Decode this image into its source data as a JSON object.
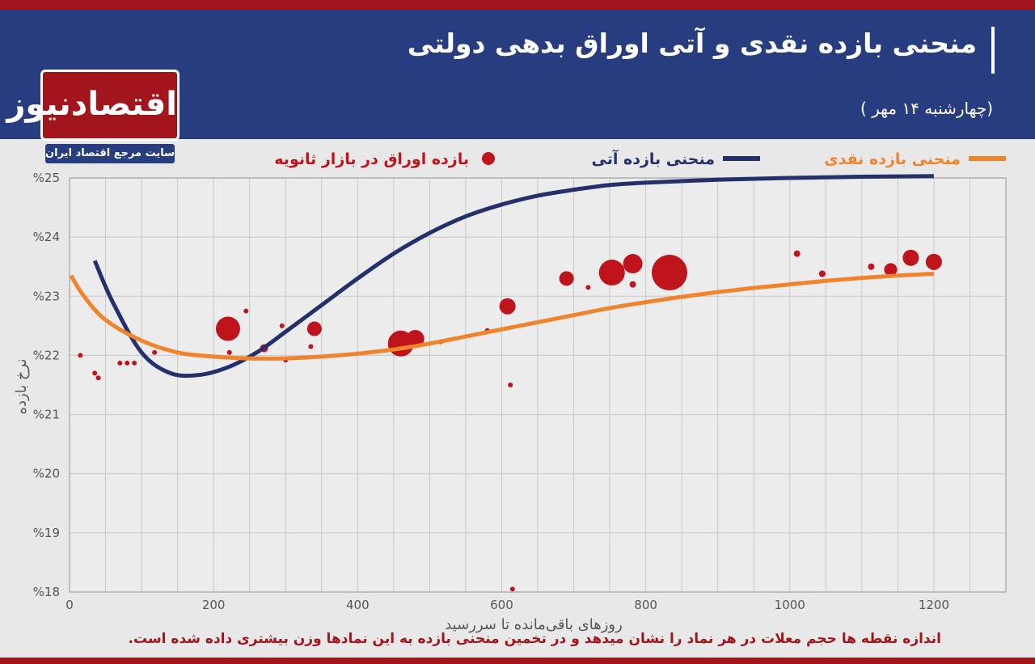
{
  "header": {
    "title": "منحنی بازده نقدی و آتی اوراق بدهی دولتی",
    "date": "(چهارشنبه ۱۴ مهر )"
  },
  "logo": {
    "name": "اقتصادنیوز",
    "tagline": "سایت مرجع اقتصاد ایران"
  },
  "footnote": "اندازه نقطه ها حجم معلات در هر نماد را نشان میدهد و در تخمین منحنی بازده به این نمادها وزن بیشتری داده شده است.",
  "colors": {
    "header_bg": "#283c80",
    "accent_red": "#a3151d",
    "spot_curve": "#f0842c",
    "forward_curve": "#24306b",
    "dots": "#c0141c"
  },
  "chart_data": {
    "type": "scatter",
    "xlabel": "روزهای باقی‌مانده تا سررسید",
    "ylabel": "نرخ بازده",
    "xlim": [
      0,
      1300
    ],
    "ylim": [
      18,
      25
    ],
    "x_ticks": [
      0,
      200,
      400,
      600,
      800,
      1000,
      1200
    ],
    "x_tick_labels": [
      "0",
      "200",
      "400",
      "600",
      "800",
      "1000",
      "1200"
    ],
    "y_ticks": [
      18,
      19,
      20,
      21,
      22,
      23,
      24,
      25
    ],
    "y_tick_labels": [
      "%18",
      "%19",
      "%20",
      "%21",
      "%22",
      "%23",
      "%24",
      "%25"
    ],
    "grid": true,
    "legend_position": "top",
    "legend": {
      "spot": "منحنی بازده نقدی",
      "forward": "منحنی بازده آتی",
      "dots": "بازده اوراق در بازار ثانویه"
    },
    "series": [
      {
        "name": "منحنی بازده نقدی",
        "kind": "line",
        "x": [
          2,
          20,
          50,
          100,
          150,
          200,
          250,
          300,
          350,
          400,
          450,
          500,
          550,
          600,
          650,
          700,
          750,
          800,
          850,
          900,
          950,
          1000,
          1050,
          1100,
          1150,
          1200
        ],
        "y": [
          23.35,
          23.0,
          22.6,
          22.25,
          22.05,
          21.98,
          21.95,
          21.95,
          21.98,
          22.03,
          22.1,
          22.2,
          22.32,
          22.44,
          22.56,
          22.68,
          22.8,
          22.9,
          22.99,
          23.07,
          23.14,
          23.2,
          23.26,
          23.31,
          23.35,
          23.38
        ]
      },
      {
        "name": "منحنی بازده آتی",
        "kind": "line",
        "x": [
          35,
          60,
          100,
          140,
          180,
          220,
          260,
          300,
          350,
          400,
          450,
          500,
          550,
          600,
          650,
          700,
          750,
          800,
          900,
          1000,
          1100,
          1200
        ],
        "y": [
          23.6,
          22.9,
          22.05,
          21.7,
          21.67,
          21.8,
          22.05,
          22.4,
          22.85,
          23.3,
          23.72,
          24.07,
          24.35,
          24.55,
          24.7,
          24.8,
          24.88,
          24.92,
          24.97,
          25.0,
          25.02,
          25.03
        ]
      },
      {
        "name": "بازده اوراق در بازار ثانویه",
        "kind": "scatter",
        "points": [
          {
            "x": 15,
            "y": 22.0,
            "size": 3
          },
          {
            "x": 35,
            "y": 21.7,
            "size": 3
          },
          {
            "x": 40,
            "y": 21.62,
            "size": 3
          },
          {
            "x": 70,
            "y": 21.87,
            "size": 3
          },
          {
            "x": 80,
            "y": 21.87,
            "size": 3
          },
          {
            "x": 90,
            "y": 21.87,
            "size": 3
          },
          {
            "x": 118,
            "y": 22.05,
            "size": 3
          },
          {
            "x": 220,
            "y": 22.45,
            "size": 15
          },
          {
            "x": 222,
            "y": 22.05,
            "size": 3
          },
          {
            "x": 245,
            "y": 22.75,
            "size": 3
          },
          {
            "x": 270,
            "y": 22.12,
            "size": 5
          },
          {
            "x": 295,
            "y": 22.5,
            "size": 3
          },
          {
            "x": 300,
            "y": 21.92,
            "size": 3
          },
          {
            "x": 340,
            "y": 22.45,
            "size": 9
          },
          {
            "x": 335,
            "y": 22.15,
            "size": 3
          },
          {
            "x": 460,
            "y": 22.2,
            "size": 16
          },
          {
            "x": 480,
            "y": 22.28,
            "size": 11
          },
          {
            "x": 515,
            "y": 22.23,
            "size": 3
          },
          {
            "x": 580,
            "y": 22.42,
            "size": 3
          },
          {
            "x": 608,
            "y": 22.83,
            "size": 10
          },
          {
            "x": 612,
            "y": 21.5,
            "size": 3
          },
          {
            "x": 615,
            "y": 18.05,
            "size": 3
          },
          {
            "x": 690,
            "y": 23.3,
            "size": 9
          },
          {
            "x": 720,
            "y": 23.15,
            "size": 3
          },
          {
            "x": 753,
            "y": 23.4,
            "size": 16
          },
          {
            "x": 782,
            "y": 23.55,
            "size": 12
          },
          {
            "x": 782,
            "y": 23.2,
            "size": 4
          },
          {
            "x": 833,
            "y": 23.4,
            "size": 22
          },
          {
            "x": 1010,
            "y": 23.72,
            "size": 4
          },
          {
            "x": 1045,
            "y": 23.38,
            "size": 4
          },
          {
            "x": 1113,
            "y": 23.5,
            "size": 4
          },
          {
            "x": 1140,
            "y": 23.45,
            "size": 8
          },
          {
            "x": 1168,
            "y": 23.65,
            "size": 10
          },
          {
            "x": 1200,
            "y": 23.58,
            "size": 10
          }
        ]
      }
    ]
  }
}
